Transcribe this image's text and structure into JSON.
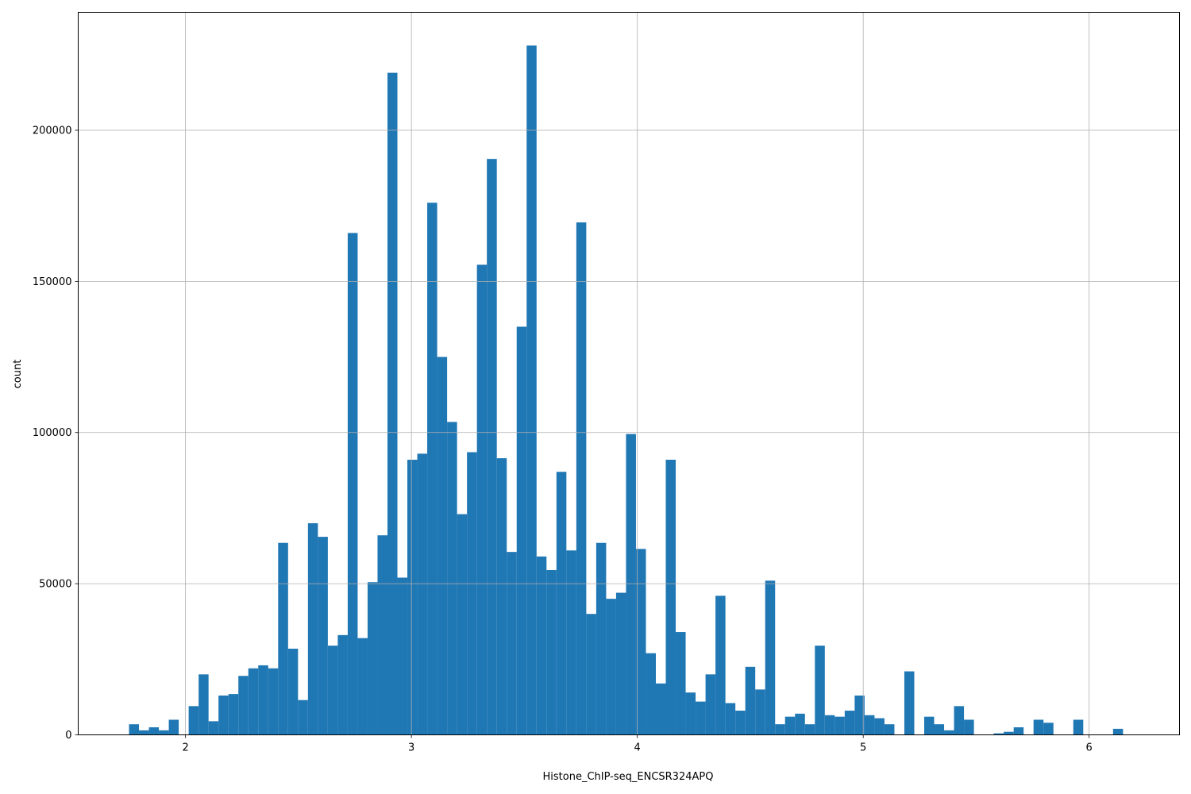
{
  "chart_data": {
    "type": "bar",
    "xlabel": "Histone_ChIP-seq_ENCSR324APQ",
    "ylabel": "count",
    "xlim": [
      1.525,
      6.4
    ],
    "ylim": [
      0,
      239000
    ],
    "grid": true,
    "bar_color": "#1f77b4",
    "bin_width": 0.044,
    "x_ticks": [
      2,
      3,
      4,
      5,
      6
    ],
    "y_ticks": [
      0,
      50000,
      100000,
      150000,
      200000
    ],
    "x_bin_starts": [
      1.75,
      1.794,
      1.838,
      1.882,
      1.926,
      1.97,
      2.014,
      2.058,
      2.102,
      2.146,
      2.19,
      2.234,
      2.278,
      2.322,
      2.366,
      2.41,
      2.454,
      2.498,
      2.542,
      2.586,
      2.63,
      2.674,
      2.718,
      2.762,
      2.806,
      2.85,
      2.894,
      2.938,
      2.982,
      3.026,
      3.07,
      3.114,
      3.158,
      3.202,
      3.246,
      3.29,
      3.334,
      3.378,
      3.422,
      3.466,
      3.51,
      3.554,
      3.598,
      3.642,
      3.686,
      3.73,
      3.774,
      3.818,
      3.862,
      3.906,
      3.95,
      3.994,
      4.038,
      4.082,
      4.126,
      4.17,
      4.214,
      4.258,
      4.302,
      4.346,
      4.39,
      4.434,
      4.478,
      4.522,
      4.566,
      4.61,
      4.654,
      4.698,
      4.742,
      4.786,
      4.83,
      4.874,
      4.918,
      4.962,
      5.006,
      5.05,
      5.094,
      5.138,
      5.182,
      5.226,
      5.27,
      5.314,
      5.358,
      5.402,
      5.446,
      5.49,
      5.534,
      5.578,
      5.622,
      5.666,
      5.71,
      5.754,
      5.798,
      5.842,
      5.886,
      5.93,
      5.974,
      6.018,
      6.062,
      6.106
    ],
    "values": [
      3500,
      1500,
      2500,
      1500,
      5000,
      0,
      9500,
      20000,
      4500,
      13000,
      13500,
      19500,
      22000,
      23000,
      22000,
      63500,
      28500,
      11500,
      70000,
      65500,
      29500,
      33000,
      166000,
      32000,
      50500,
      66000,
      219000,
      52000,
      91000,
      93000,
      176000,
      125000,
      103500,
      73000,
      93500,
      155500,
      190500,
      91500,
      60500,
      135000,
      228000,
      59000,
      54500,
      87000,
      61000,
      169500,
      40000,
      63500,
      45000,
      47000,
      99500,
      61500,
      27000,
      17000,
      91000,
      34000,
      14000,
      11000,
      20000,
      46000,
      10500,
      8000,
      22500,
      15000,
      51000,
      3500,
      6000,
      7000,
      3500,
      29500,
      6500,
      6000,
      8000,
      13000,
      6500,
      5500,
      3500,
      0,
      21000,
      0,
      6000,
      3500,
      1500,
      9500,
      5000,
      0,
      0,
      500,
      1000,
      2500,
      0,
      5000,
      4000,
      0,
      0,
      5000,
      0,
      0,
      0,
      2000
    ]
  }
}
